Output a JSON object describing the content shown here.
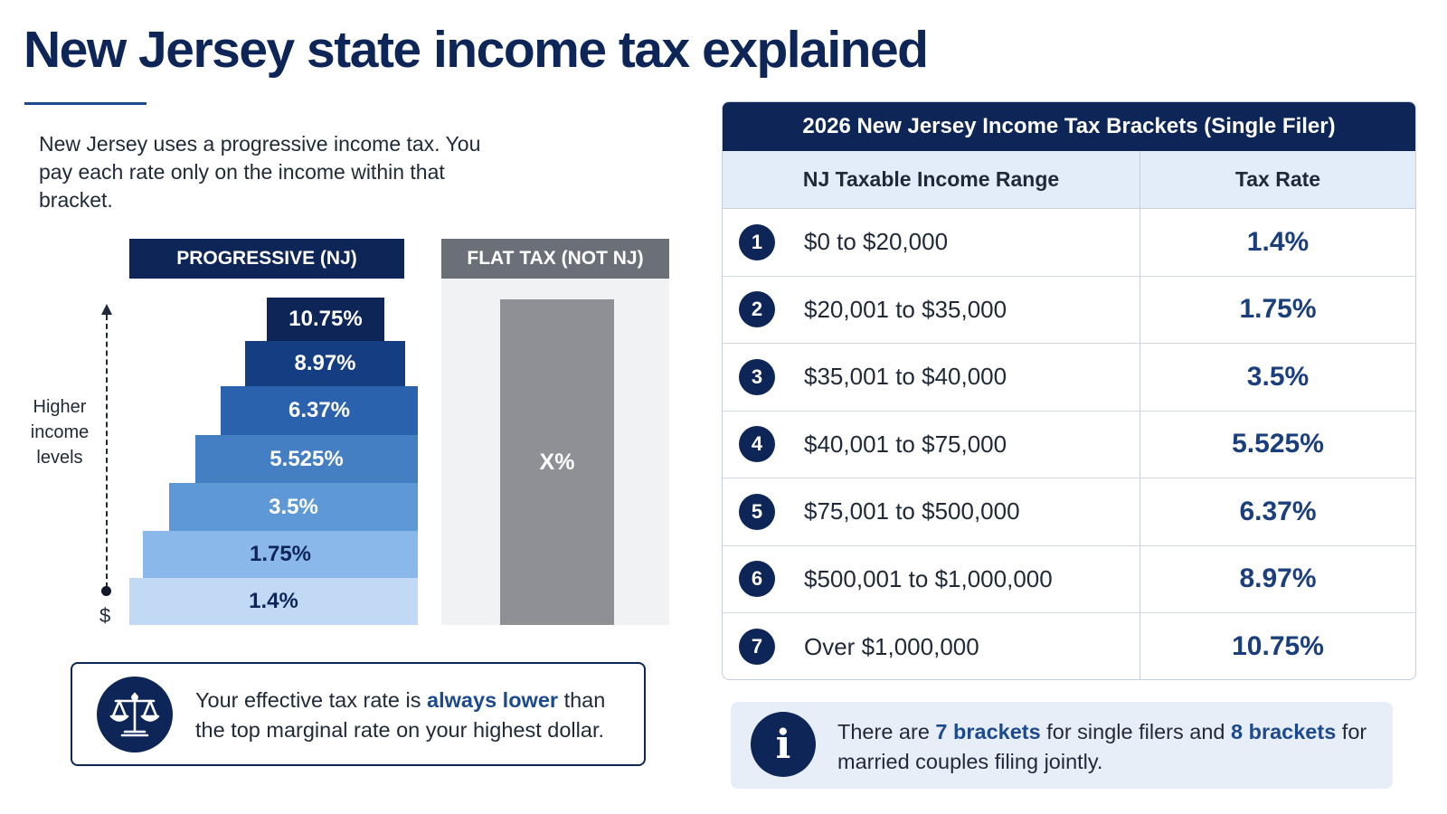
{
  "title": "New Jersey state income tax explained",
  "intro": "New Jersey uses a progressive income tax. You pay each rate only on the income within that bracket.",
  "progressive_header": "PROGRESSIVE (NJ)",
  "flat_header": "FLAT TAX (NOT NJ)",
  "axis": {
    "label": "Higher income levels",
    "base_symbol": "$"
  },
  "steps": [
    "10.75%",
    "8.97%",
    "6.37%",
    "5.525%",
    "3.5%",
    "1.75%",
    "1.4%"
  ],
  "flat_value": "X%",
  "note": {
    "text_before": "Your effective tax rate is ",
    "highlight": "always lower",
    "text_after": " than the top marginal rate on your highest dollar."
  },
  "table": {
    "title": "2026 New Jersey Income Tax Brackets (Single Filer)",
    "col_range": "NJ Taxable Income Range",
    "col_rate": "Tax Rate",
    "rows": [
      {
        "num": "1",
        "range": "$0 to $20,000",
        "rate": "1.4%"
      },
      {
        "num": "2",
        "range": "$20,001 to $35,000",
        "rate": "1.75%"
      },
      {
        "num": "3",
        "range": "$35,001 to $40,000",
        "rate": "3.5%"
      },
      {
        "num": "4",
        "range": "$40,001 to $75,000",
        "rate": "5.525%"
      },
      {
        "num": "5",
        "range": "$75,001 to $500,000",
        "rate": "6.37%"
      },
      {
        "num": "6",
        "range": "$500,001 to $1,000,000",
        "rate": "8.97%"
      },
      {
        "num": "7",
        "range": "Over $1,000,000",
        "rate": "10.75%"
      }
    ]
  },
  "info": {
    "t1": "There are ",
    "h1": "7 brackets",
    "t2": " for single filers and ",
    "h2": "8 brackets",
    "t3": " for married couples filing jointly."
  },
  "colors": {
    "navy": "#0d2557",
    "accent": "#1d4a8f",
    "flat_gray": "#8e9095",
    "step_shades": [
      "#0d2557",
      "#143d82",
      "#2a62ad",
      "#447fc4",
      "#5f98d6",
      "#8bb8ea",
      "#c2d9f6"
    ]
  }
}
